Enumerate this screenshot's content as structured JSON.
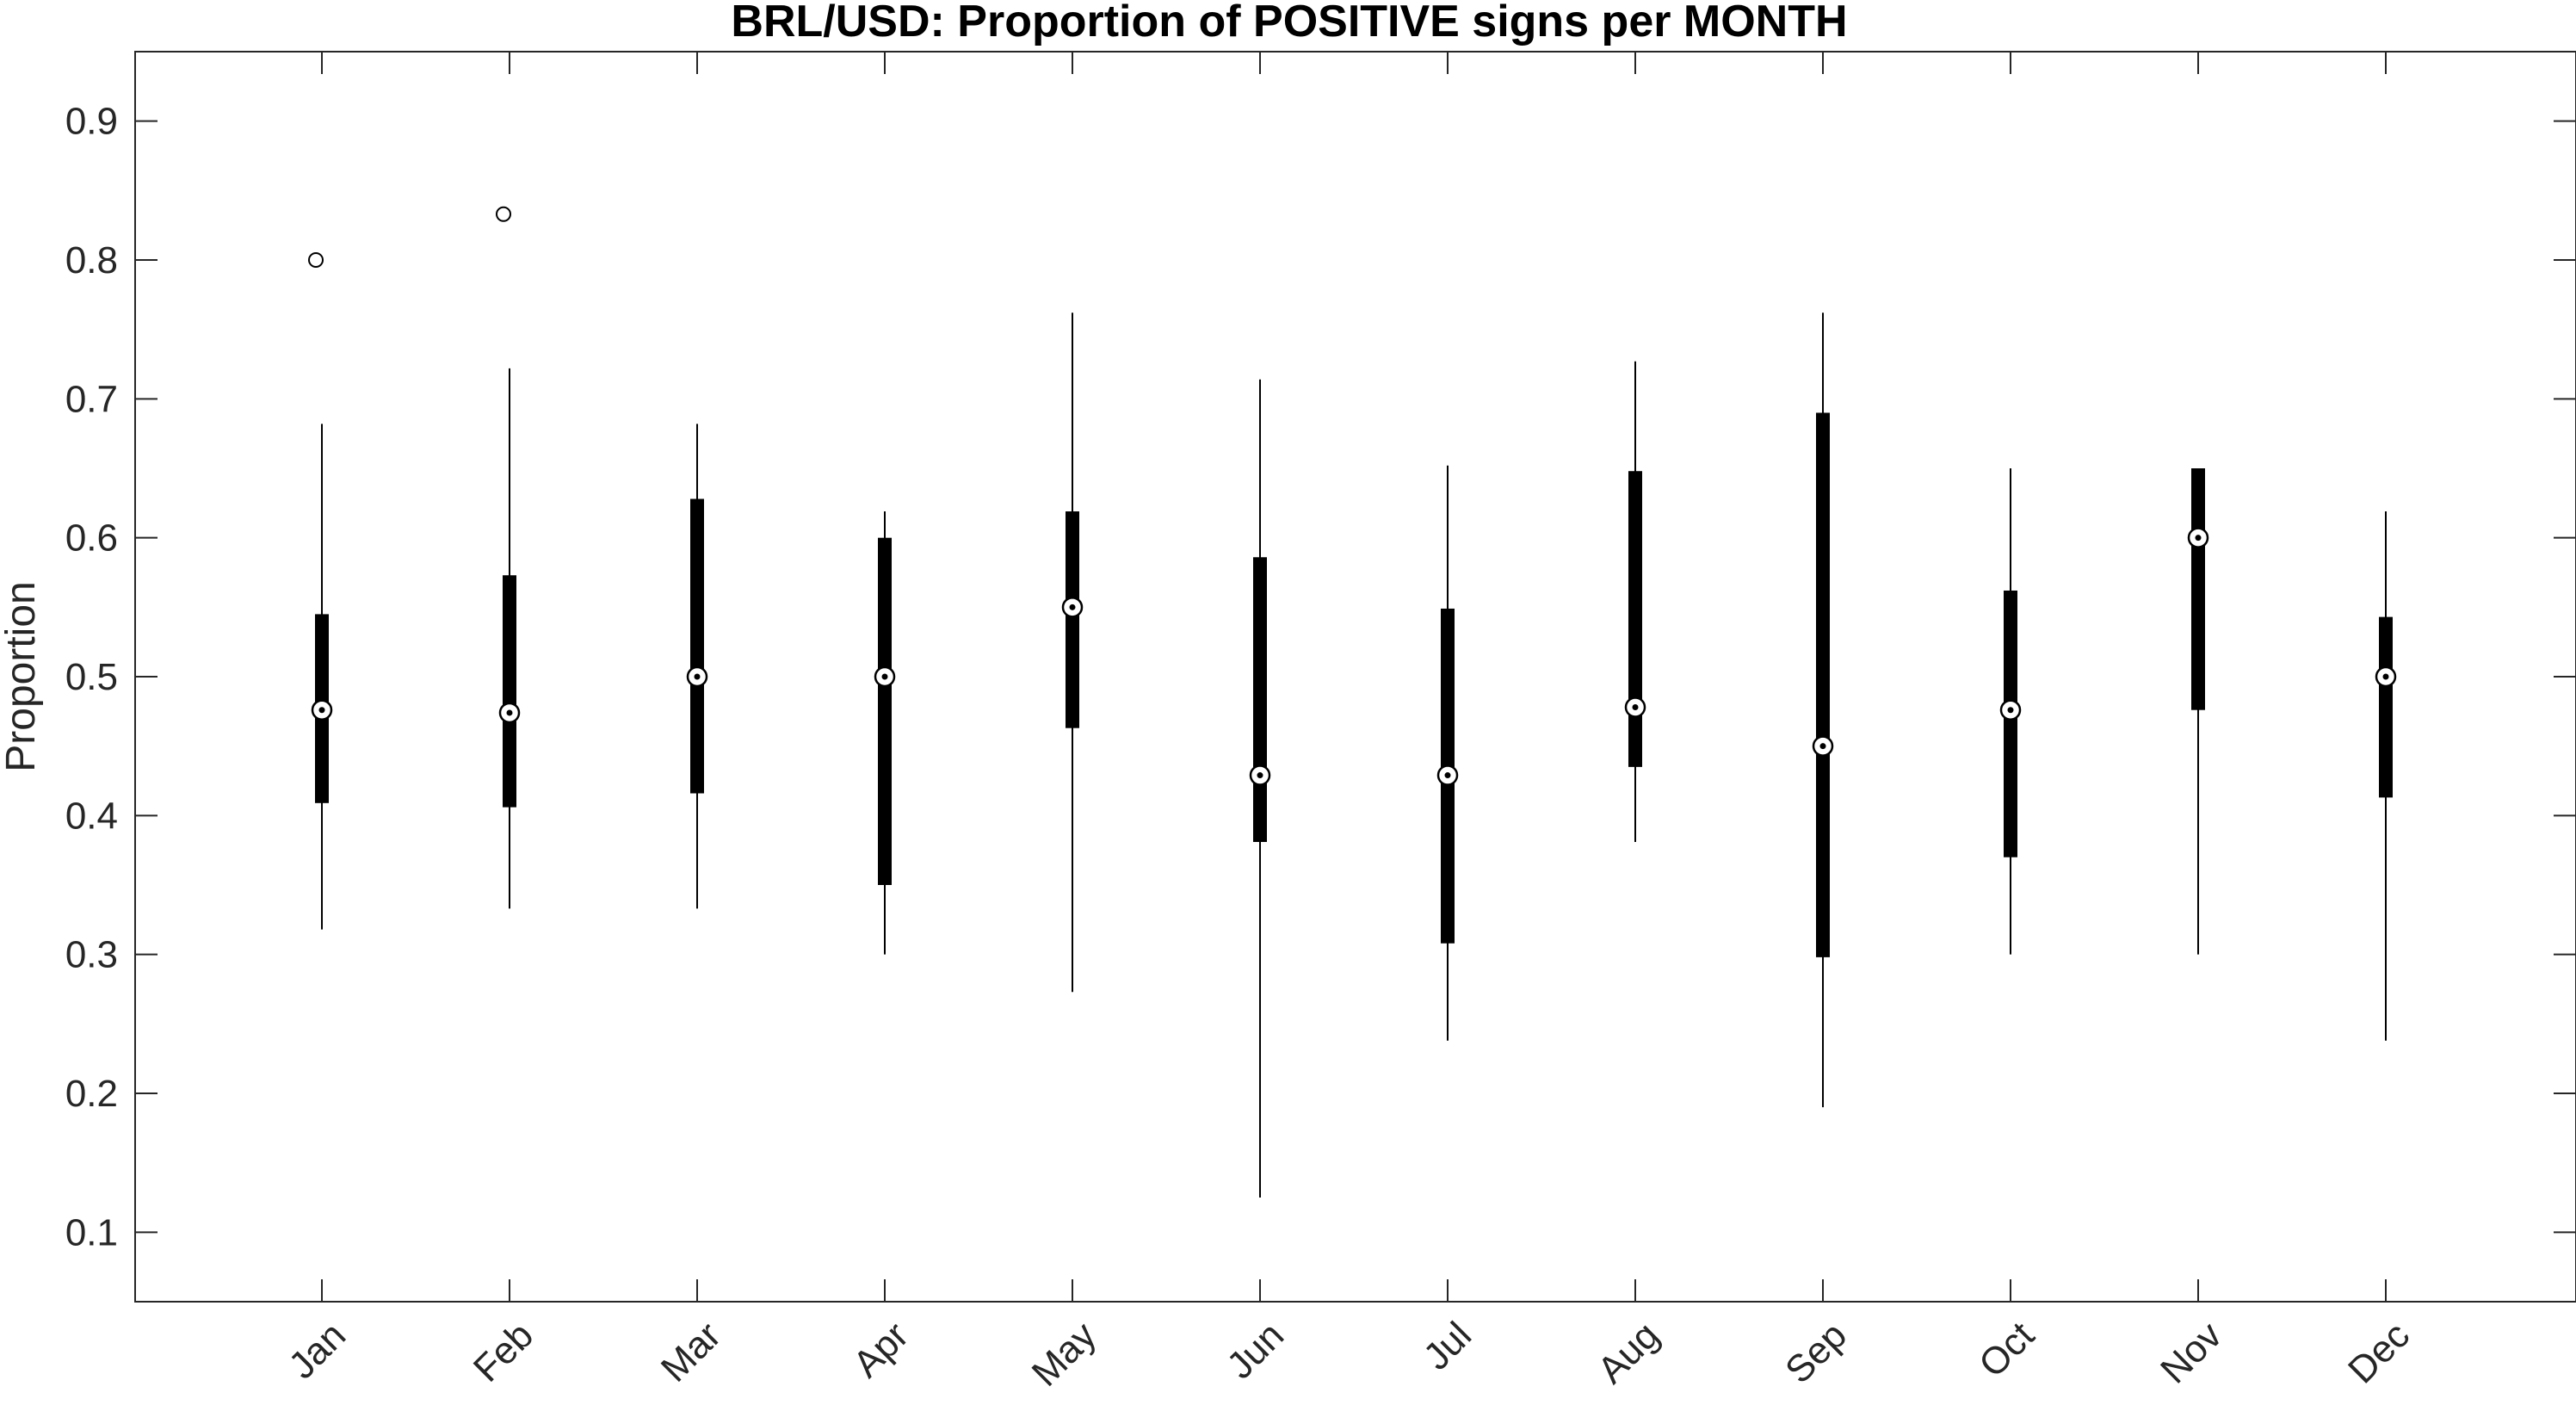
{
  "chart_data": {
    "type": "boxplot",
    "title": "BRL/USD: Proportion of POSITIVE signs per MONTH",
    "xlabel": "",
    "ylabel": "Proportion",
    "ylim": [
      0.05,
      0.95
    ],
    "yticks": [
      0.1,
      0.2,
      0.3,
      0.4,
      0.5,
      0.6,
      0.7,
      0.8,
      0.9
    ],
    "ytick_labels": [
      "0.1",
      "0.2",
      "0.3",
      "0.4",
      "0.5",
      "0.6",
      "0.7",
      "0.8",
      "0.9"
    ],
    "categories": [
      "Jan",
      "Feb",
      "Mar",
      "Apr",
      "May",
      "Jun",
      "Jul",
      "Aug",
      "Sep",
      "Oct",
      "Nov",
      "Dec"
    ],
    "boxes": [
      {
        "label": "Jan",
        "whisker_low": 0.318,
        "q1": 0.409,
        "median": 0.476,
        "q3": 0.545,
        "whisker_high": 0.682,
        "outliers": [
          0.8
        ]
      },
      {
        "label": "Feb",
        "whisker_low": 0.333,
        "q1": 0.406,
        "median": 0.474,
        "q3": 0.573,
        "whisker_high": 0.722,
        "outliers": [
          0.833
        ]
      },
      {
        "label": "Mar",
        "whisker_low": 0.333,
        "q1": 0.416,
        "median": 0.5,
        "q3": 0.628,
        "whisker_high": 0.682,
        "outliers": []
      },
      {
        "label": "Apr",
        "whisker_low": 0.3,
        "q1": 0.35,
        "median": 0.5,
        "q3": 0.6,
        "whisker_high": 0.619,
        "outliers": []
      },
      {
        "label": "May",
        "whisker_low": 0.273,
        "q1": 0.463,
        "median": 0.55,
        "q3": 0.619,
        "whisker_high": 0.762,
        "outliers": []
      },
      {
        "label": "Jun",
        "whisker_low": 0.125,
        "q1": 0.381,
        "median": 0.429,
        "q3": 0.586,
        "whisker_high": 0.714,
        "outliers": []
      },
      {
        "label": "Jul",
        "whisker_low": 0.238,
        "q1": 0.308,
        "median": 0.429,
        "q3": 0.549,
        "whisker_high": 0.652,
        "outliers": []
      },
      {
        "label": "Aug",
        "whisker_low": 0.381,
        "q1": 0.435,
        "median": 0.478,
        "q3": 0.648,
        "whisker_high": 0.727,
        "outliers": []
      },
      {
        "label": "Sep",
        "whisker_low": 0.19,
        "q1": 0.298,
        "median": 0.45,
        "q3": 0.69,
        "whisker_high": 0.762,
        "outliers": []
      },
      {
        "label": "Oct",
        "whisker_low": 0.3,
        "q1": 0.37,
        "median": 0.476,
        "q3": 0.562,
        "whisker_high": 0.65,
        "outliers": []
      },
      {
        "label": "Nov",
        "whisker_low": 0.3,
        "q1": 0.476,
        "median": 0.6,
        "q3": 0.65,
        "whisker_high": 0.65,
        "outliers": []
      },
      {
        "label": "Dec",
        "whisker_low": 0.238,
        "q1": 0.413,
        "median": 0.5,
        "q3": 0.543,
        "whisker_high": 0.619,
        "outliers": []
      }
    ],
    "grid": false,
    "legend": "none"
  }
}
